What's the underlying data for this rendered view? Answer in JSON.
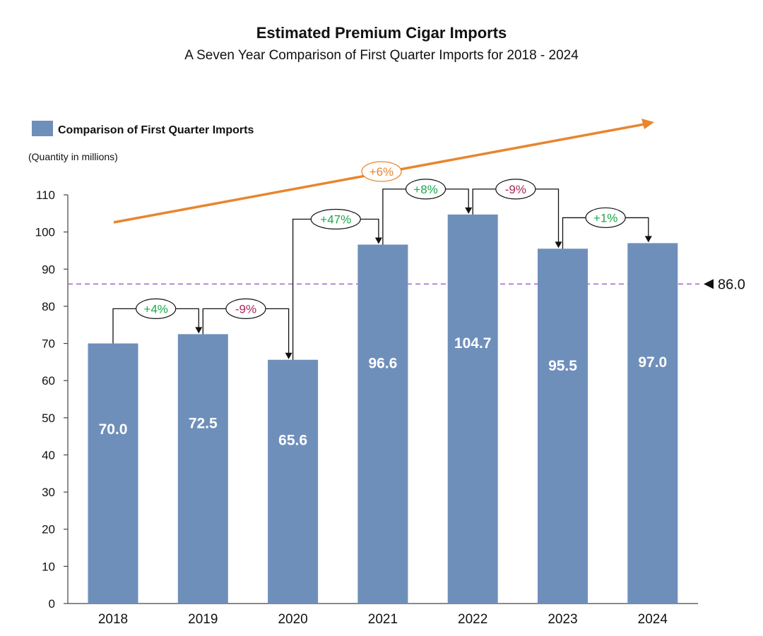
{
  "title": "Estimated Premium Cigar Imports",
  "subtitle": "A Seven Year Comparison of First Quarter Imports for 2018 - 2024",
  "colors": {
    "bar": "#6f8fbb",
    "increase": "#1aa84a",
    "decrease": "#b0265a",
    "trend": "#e8852f",
    "reference": "#9b59d0"
  },
  "chart_data": {
    "type": "bar",
    "categories": [
      "2018",
      "2019",
      "2020",
      "2021",
      "2022",
      "2023",
      "2024"
    ],
    "series": [
      {
        "name": "Comparison of First Quarter Imports",
        "values": [
          70.0,
          72.5,
          65.6,
          96.6,
          104.7,
          95.5,
          97.0
        ]
      }
    ],
    "value_labels": [
      "70.0",
      "72.5",
      "65.6",
      "96.6",
      "104.7",
      "95.5",
      "97.0"
    ],
    "ylabel": "(Quantity in millions)",
    "ylim": [
      0,
      110
    ],
    "yticks": [
      "0",
      "10",
      "20",
      "30",
      "40",
      "50",
      "60",
      "70",
      "80",
      "90",
      "100",
      "110"
    ],
    "legend": {
      "label": "Comparison of First Quarter Imports",
      "position": "top-left"
    },
    "changes": [
      {
        "from": "2018",
        "to": "2019",
        "label": "+4%",
        "direction": "up"
      },
      {
        "from": "2019",
        "to": "2020",
        "label": "-9%",
        "direction": "down"
      },
      {
        "from": "2020",
        "to": "2021",
        "label": "+47%",
        "direction": "up"
      },
      {
        "from": "2021",
        "to": "2022",
        "label": "+8%",
        "direction": "up"
      },
      {
        "from": "2022",
        "to": "2023",
        "label": "-9%",
        "direction": "down"
      },
      {
        "from": "2023",
        "to": "2024",
        "label": "+1%",
        "direction": "up"
      }
    ],
    "trend": {
      "label": "+6%"
    },
    "reference_line": {
      "value": 86.0,
      "label": "86.0"
    },
    "grid": false
  }
}
